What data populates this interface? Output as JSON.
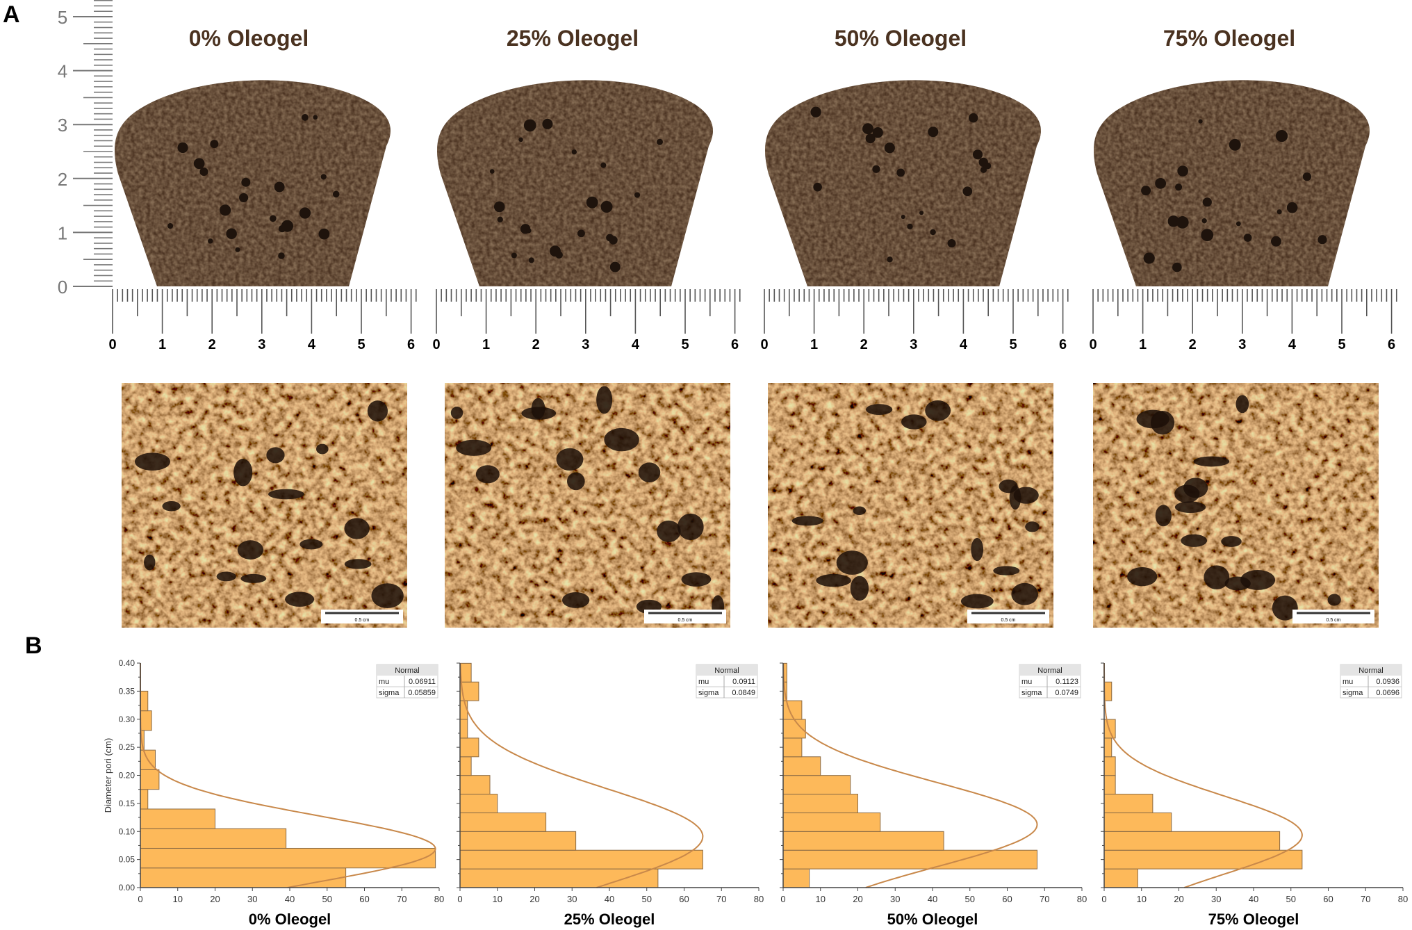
{
  "panel_labels": {
    "a": "A",
    "b": "B"
  },
  "vertical_ruler": {
    "labels": [
      "0",
      "1",
      "2",
      "3",
      "4",
      "5"
    ]
  },
  "horizontal_ruler": {
    "labels": [
      "0",
      "1",
      "2",
      "3",
      "4",
      "5",
      "6"
    ]
  },
  "panels": [
    {
      "title": "0% Oleogel",
      "scale_bar": "0.5 cm"
    },
    {
      "title": "25% Oleogel",
      "scale_bar": "0.5 cm"
    },
    {
      "title": "50% Oleogel",
      "scale_bar": "0.5 cm"
    },
    {
      "title": "75% Oleogel",
      "scale_bar": "0.5 cm"
    }
  ],
  "colors": {
    "bar_fill": "#fdb95a",
    "bar_edge": "#8a6a45",
    "curve": "#c8884a",
    "crumb_dark": "#3e2a1c",
    "crumb_light": "#6b4a2e"
  },
  "chart_data": [
    {
      "type": "bar",
      "orientation": "horizontal-histogram",
      "title": "0% Oleogel",
      "ylabel": "Diameter pori (cm)",
      "xlabel": "",
      "xlim": [
        0,
        80
      ],
      "ylim": [
        0,
        0.4
      ],
      "x_ticks": [
        "0",
        "10",
        "20",
        "30",
        "40",
        "50",
        "60",
        "70",
        "80"
      ],
      "y_ticks": [
        "0.00",
        "0.05",
        "0.10",
        "0.15",
        "0.20",
        "0.25",
        "0.30",
        "0.35",
        "0.40"
      ],
      "bin_width": 0.035,
      "counts": [
        55,
        79,
        39,
        20,
        2,
        5,
        4,
        1,
        3,
        2
      ],
      "fit": {
        "name": "Normal",
        "mu_label": "mu",
        "sigma_label": "sigma",
        "mu": "0.06911",
        "sigma": "0.05859"
      }
    },
    {
      "type": "bar",
      "orientation": "horizontal-histogram",
      "title": "25% Oleogel",
      "xlabel": "",
      "xlim": [
        0,
        80
      ],
      "ylim": [
        0,
        0.4
      ],
      "x_ticks": [
        "0",
        "10",
        "20",
        "30",
        "40",
        "50",
        "60",
        "70",
        "80"
      ],
      "bin_width": 0.0333,
      "counts": [
        53,
        65,
        31,
        23,
        10,
        8,
        3,
        5,
        2,
        2,
        5,
        3
      ],
      "fit": {
        "name": "Normal",
        "mu_label": "mu",
        "sigma_label": "sigma",
        "mu": "0.0911",
        "sigma": "0.0849"
      }
    },
    {
      "type": "bar",
      "orientation": "horizontal-histogram",
      "title": "50% Oleogel",
      "xlabel": "",
      "xlim": [
        0,
        80
      ],
      "ylim": [
        0,
        0.4
      ],
      "x_ticks": [
        "0",
        "10",
        "20",
        "30",
        "40",
        "50",
        "60",
        "70",
        "80"
      ],
      "bin_width": 0.0333,
      "counts": [
        7,
        68,
        43,
        26,
        20,
        18,
        10,
        5,
        6,
        5,
        1,
        1
      ],
      "fit": {
        "name": "Normal",
        "mu_label": "mu",
        "sigma_label": "sigma",
        "mu": "0.1123",
        "sigma": "0.0749"
      }
    },
    {
      "type": "bar",
      "orientation": "horizontal-histogram",
      "title": "75% Oleogel",
      "xlabel": "",
      "xlim": [
        0,
        80
      ],
      "ylim": [
        0,
        0.4
      ],
      "x_ticks": [
        "0",
        "10",
        "20",
        "30",
        "40",
        "50",
        "60",
        "70",
        "80"
      ],
      "bin_width": 0.0333,
      "counts": [
        9,
        53,
        47,
        18,
        13,
        3,
        3,
        2,
        3,
        0,
        2,
        0
      ],
      "fit": {
        "name": "Normal",
        "mu_label": "mu",
        "sigma_label": "sigma",
        "mu": "0.0936",
        "sigma": "0.0696"
      }
    }
  ]
}
